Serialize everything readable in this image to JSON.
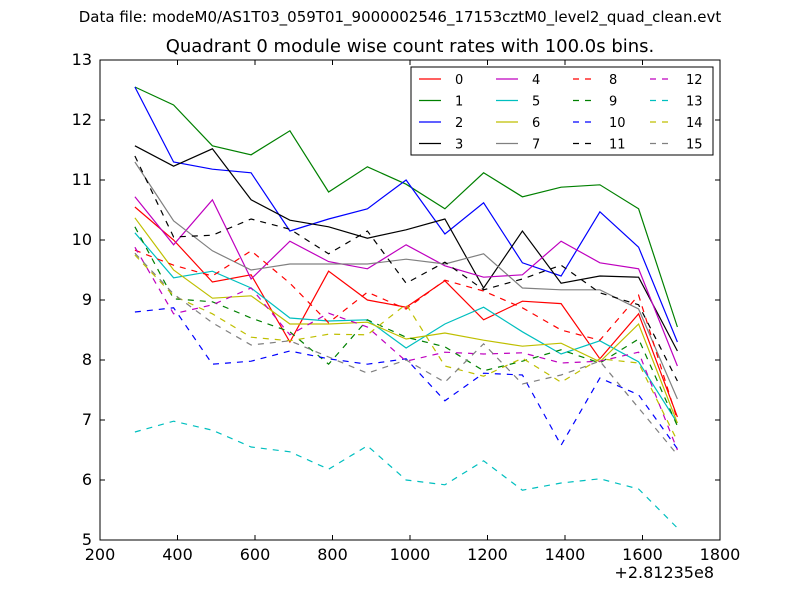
{
  "header": {
    "suptitle": "Data file: modeM0/AS1T03_059T01_9000002546_17153cztM0_level2_quad_clean.evt"
  },
  "chart_data": {
    "type": "line",
    "title": "Quadrant 0 module wise count rates with 100.0s bins.",
    "xlabel": "",
    "ylabel": "",
    "x_offset_label": "+2.81235e8",
    "xlim": [
      200,
      1800
    ],
    "ylim": [
      5,
      13
    ],
    "xticks": [
      200,
      400,
      600,
      800,
      1000,
      1200,
      1400,
      1600,
      1800
    ],
    "yticks": [
      5,
      6,
      7,
      8,
      9,
      10,
      11,
      12,
      13
    ],
    "grid": false,
    "legend_placement": "top-right",
    "legend_columns": 4,
    "x": [
      290,
      390,
      490,
      590,
      690,
      790,
      890,
      990,
      1090,
      1190,
      1290,
      1390,
      1490,
      1590,
      1690
    ],
    "series": [
      {
        "name": "0",
        "color": "#ff0000",
        "dashed": false,
        "values": [
          10.55,
          10.0,
          9.3,
          9.42,
          8.3,
          9.48,
          9.0,
          8.88,
          9.32,
          8.67,
          8.98,
          8.94,
          8.02,
          8.77,
          7.05
        ]
      },
      {
        "name": "1",
        "color": "#008000",
        "dashed": false,
        "values": [
          12.55,
          12.25,
          11.57,
          11.42,
          11.82,
          10.8,
          11.22,
          10.93,
          10.52,
          11.12,
          10.72,
          10.88,
          10.92,
          10.52,
          8.55
        ]
      },
      {
        "name": "2",
        "color": "#0000ff",
        "dashed": false,
        "values": [
          12.55,
          11.3,
          11.18,
          11.12,
          10.15,
          10.35,
          10.52,
          11.0,
          10.1,
          10.62,
          9.62,
          9.4,
          10.47,
          9.88,
          8.3
        ]
      },
      {
        "name": "3",
        "color": "#000000",
        "dashed": false,
        "values": [
          11.57,
          11.23,
          11.52,
          10.67,
          10.33,
          10.22,
          10.03,
          10.17,
          10.35,
          9.2,
          10.15,
          9.28,
          9.4,
          9.38,
          8.15
        ]
      },
      {
        "name": "4",
        "color": "#bf00bf",
        "dashed": false,
        "values": [
          10.72,
          9.92,
          10.67,
          9.35,
          9.98,
          9.64,
          9.52,
          9.92,
          9.57,
          9.38,
          9.42,
          9.98,
          9.62,
          9.52,
          7.9
        ]
      },
      {
        "name": "5",
        "color": "#00bfbf",
        "dashed": false,
        "values": [
          10.12,
          9.37,
          9.48,
          9.2,
          8.7,
          8.65,
          8.67,
          8.2,
          8.6,
          8.88,
          8.47,
          8.1,
          8.32,
          7.97,
          6.95
        ]
      },
      {
        "name": "6",
        "color": "#bfbf00",
        "dashed": false,
        "values": [
          10.37,
          9.5,
          9.03,
          9.07,
          8.6,
          8.6,
          8.63,
          8.35,
          8.45,
          8.33,
          8.23,
          8.28,
          7.97,
          8.6,
          6.95
        ]
      },
      {
        "name": "7",
        "color": "#808080",
        "dashed": false,
        "values": [
          11.3,
          10.32,
          9.82,
          9.5,
          9.6,
          9.6,
          9.6,
          9.68,
          9.6,
          9.77,
          9.2,
          9.17,
          9.17,
          8.85,
          7.35
        ]
      },
      {
        "name": "8",
        "color": "#ff0000",
        "dashed": true,
        "values": [
          9.83,
          9.58,
          9.4,
          9.82,
          9.28,
          8.62,
          9.13,
          8.85,
          9.33,
          9.15,
          8.87,
          8.5,
          8.33,
          9.08,
          7.0
        ]
      },
      {
        "name": "9",
        "color": "#008000",
        "dashed": true,
        "values": [
          10.22,
          9.02,
          8.97,
          8.7,
          8.47,
          7.93,
          8.67,
          8.38,
          8.22,
          7.82,
          7.98,
          8.17,
          7.95,
          8.35,
          6.9
        ]
      },
      {
        "name": "10",
        "color": "#0000ff",
        "dashed": true,
        "values": [
          8.8,
          8.87,
          7.93,
          7.98,
          8.15,
          8.02,
          7.93,
          8.02,
          7.32,
          7.78,
          7.75,
          6.58,
          7.7,
          7.42,
          6.52
        ]
      },
      {
        "name": "11",
        "color": "#000000",
        "dashed": true,
        "values": [
          11.4,
          10.05,
          10.08,
          10.35,
          10.18,
          9.77,
          10.15,
          9.28,
          9.63,
          9.17,
          9.35,
          9.58,
          9.12,
          8.92,
          7.65
        ]
      },
      {
        "name": "12",
        "color": "#bf00bf",
        "dashed": true,
        "values": [
          9.88,
          8.77,
          8.92,
          9.2,
          8.42,
          8.78,
          8.55,
          7.98,
          8.13,
          8.1,
          8.12,
          7.95,
          7.98,
          8.13,
          6.5
        ]
      },
      {
        "name": "13",
        "color": "#00bfbf",
        "dashed": true,
        "values": [
          6.8,
          6.98,
          6.83,
          6.55,
          6.47,
          6.18,
          6.57,
          6.0,
          5.92,
          6.32,
          5.83,
          5.95,
          6.02,
          5.85,
          5.2
        ]
      },
      {
        "name": "14",
        "color": "#bfbf00",
        "dashed": true,
        "values": [
          9.75,
          9.07,
          8.77,
          8.38,
          8.32,
          8.43,
          8.42,
          8.93,
          7.9,
          7.73,
          8.03,
          7.63,
          8.02,
          7.95,
          6.65
        ]
      },
      {
        "name": "15",
        "color": "#808080",
        "dashed": true,
        "values": [
          9.78,
          9.1,
          8.62,
          8.25,
          8.32,
          8.05,
          7.78,
          8.0,
          7.63,
          8.27,
          7.6,
          7.75,
          7.98,
          7.2,
          6.42
        ]
      }
    ]
  }
}
